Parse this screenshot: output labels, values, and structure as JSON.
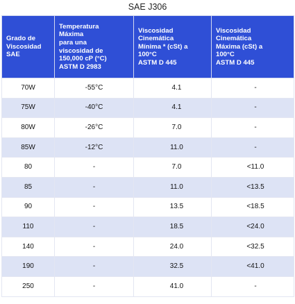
{
  "document": {
    "title": "SAE J306"
  },
  "table": {
    "headers": [
      "Grado de\nViscosidad\nSAE",
      "Temperatura\nMáxima\npara una\nviscosidad de\n150,000 cP (°C)\nASTM D 2983",
      "Viscosidad\nCinemática\nMínima * (cSt) a\n100°C\nASTM D 445",
      "Viscosidad\nCinemática\nMáxima (cSt) a\n100°C\nASTM D 445"
    ],
    "rows": [
      [
        "70W",
        "-55°C",
        "4.1",
        "-"
      ],
      [
        "75W",
        "-40°C",
        "4.1",
        "-"
      ],
      [
        "80W",
        "-26°C",
        "7.0",
        "-"
      ],
      [
        "85W",
        "-12°C",
        "11.0",
        "-"
      ],
      [
        "80",
        "-",
        "7.0",
        "<11.0"
      ],
      [
        "85",
        "-",
        "11.0",
        "<13.5"
      ],
      [
        "90",
        "-",
        "13.5",
        "<18.5"
      ],
      [
        "110",
        "-",
        "18.5",
        "<24.0"
      ],
      [
        "140",
        "-",
        "24.0",
        "<32.5"
      ],
      [
        "190",
        "-",
        "32.5",
        "<41.0"
      ],
      [
        "250",
        "-",
        "41.0",
        "-"
      ]
    ]
  }
}
